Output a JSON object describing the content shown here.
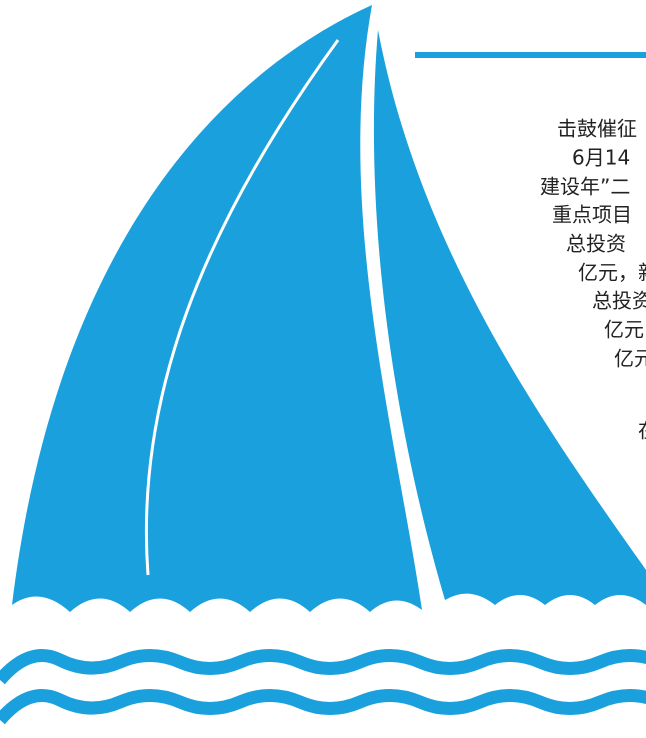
{
  "text_lines": [
    "击鼓催征",
    "6月14",
    "建设年”二",
    "重点项目",
    "总投资",
    "亿元，新",
    "总投资",
    "亿元",
    "亿元",
    "在"
  ]
}
